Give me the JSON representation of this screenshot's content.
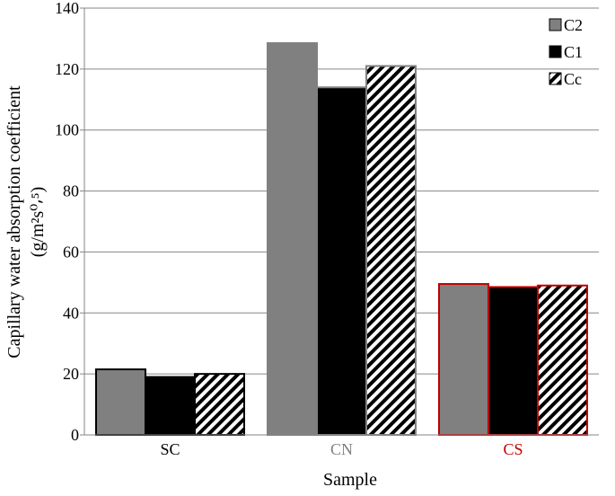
{
  "chart_data": {
    "type": "bar",
    "title": "",
    "xlabel": "Sample",
    "ylabel_line1": "Capillary  water  absorption  coefficient",
    "ylabel_line2": "(g/m²s⁰⸴⁵)",
    "ylim": [
      0,
      140
    ],
    "yticks": [
      0,
      20,
      40,
      60,
      80,
      100,
      120,
      140
    ],
    "grid": true,
    "legend_position": "top-right",
    "categories": [
      "SC",
      "CN",
      "CS"
    ],
    "category_label_colors": [
      "#000000",
      "#808080",
      "#c00000"
    ],
    "category_border_colors": [
      "#000000",
      "#808080",
      "#c00000"
    ],
    "series": [
      {
        "name": "C2",
        "values": [
          21.5,
          128.5,
          49.5
        ],
        "fill": "#808080",
        "pattern": "solid"
      },
      {
        "name": "C1",
        "values": [
          19.0,
          114.0,
          48.5
        ],
        "fill": "#000000",
        "pattern": "solid"
      },
      {
        "name": "Cc",
        "values": [
          20.0,
          121.0,
          49.0
        ],
        "fill": "#000000",
        "pattern": "diagonal-hatch"
      }
    ]
  }
}
